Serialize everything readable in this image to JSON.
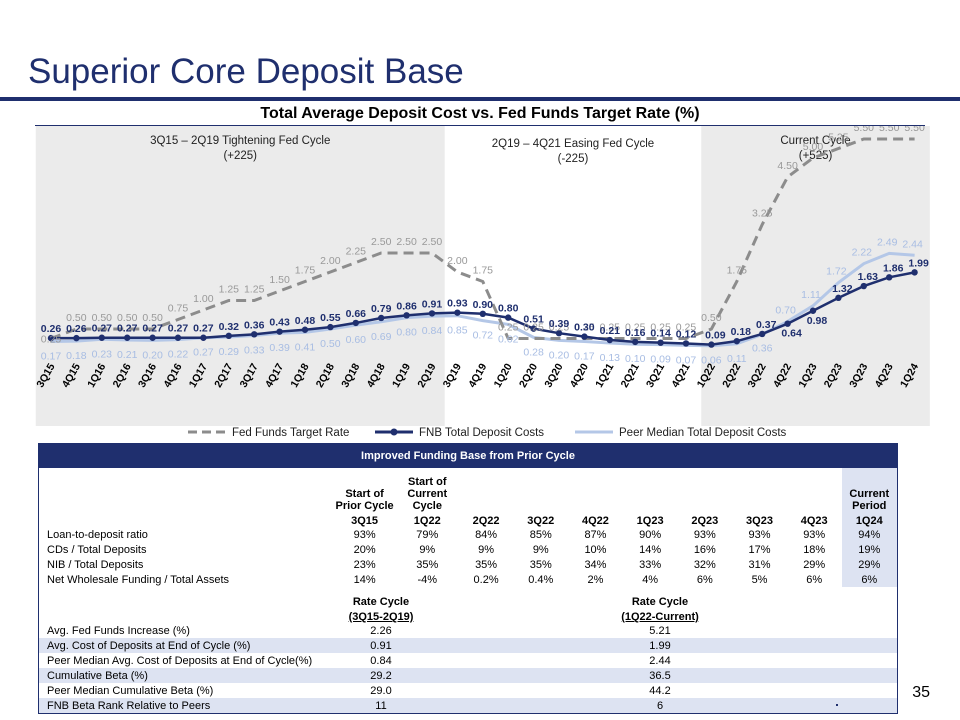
{
  "page": {
    "title": "Superior Core Deposit Base",
    "page_number": "35"
  },
  "chart_data": {
    "type": "line",
    "title": "Total Average Deposit Cost vs. Fed Funds Target Rate (%)",
    "categories": [
      "3Q15",
      "4Q15",
      "1Q16",
      "2Q16",
      "3Q16",
      "4Q16",
      "1Q17",
      "2Q17",
      "3Q17",
      "4Q17",
      "1Q18",
      "2Q18",
      "3Q18",
      "4Q18",
      "1Q19",
      "2Q19",
      "3Q19",
      "4Q19",
      "1Q20",
      "2Q20",
      "3Q20",
      "4Q20",
      "1Q21",
      "2Q21",
      "3Q21",
      "4Q21",
      "1Q22",
      "2Q22",
      "3Q22",
      "4Q22",
      "1Q23",
      "2Q23",
      "3Q23",
      "4Q23",
      "1Q24"
    ],
    "series": [
      {
        "name": "Fed Funds Target Rate",
        "style": "dashed",
        "color": "#8c8c8c",
        "values": [
          0.25,
          0.5,
          0.5,
          0.5,
          0.5,
          0.75,
          1.0,
          1.25,
          1.25,
          1.5,
          1.75,
          2.0,
          2.25,
          2.5,
          2.5,
          2.5,
          2.0,
          1.75,
          0.25,
          0.25,
          0.25,
          0.25,
          0.25,
          0.25,
          0.25,
          0.25,
          0.5,
          1.75,
          3.25,
          4.5,
          5.0,
          5.25,
          5.5,
          5.5,
          5.5
        ]
      },
      {
        "name": "FNB Total Deposit Costs",
        "style": "solid-marker",
        "color": "#1f2f6e",
        "values": [
          0.26,
          0.26,
          0.27,
          0.27,
          0.27,
          0.27,
          0.27,
          0.32,
          0.36,
          0.43,
          0.48,
          0.55,
          0.66,
          0.79,
          0.86,
          0.91,
          0.93,
          0.9,
          0.8,
          0.51,
          0.39,
          0.3,
          0.21,
          0.16,
          0.14,
          0.12,
          0.09,
          0.18,
          0.37,
          0.64,
          0.98,
          1.32,
          1.63,
          1.86,
          1.99
        ]
      },
      {
        "name": "Peer Median Total Deposit Costs",
        "style": "solid",
        "color": "#b4c7e7",
        "values": [
          0.17,
          0.18,
          0.23,
          0.21,
          0.2,
          0.22,
          0.27,
          0.29,
          0.33,
          0.39,
          0.41,
          0.5,
          0.6,
          0.69,
          0.8,
          0.84,
          0.85,
          0.72,
          0.62,
          0.28,
          0.2,
          0.17,
          0.13,
          0.1,
          0.09,
          0.07,
          0.06,
          0.11,
          0.36,
          0.7,
          1.11,
          1.72,
          2.22,
          2.49,
          2.44
        ]
      }
    ],
    "cycles": [
      {
        "label": "3Q15 – 2Q19 Tightening Fed Cycle",
        "sublabel": "(+225)",
        "shaded": true
      },
      {
        "label": "2Q19 – 4Q21 Easing Fed Cycle",
        "sublabel": "(-225)",
        "shaded": false
      },
      {
        "label": "Current Cycle",
        "sublabel": "(+525)",
        "shaded": true
      }
    ],
    "ylim": [
      0,
      6
    ],
    "legend_position": "bottom"
  },
  "table": {
    "title": "Improved Funding Base from Prior Cycle",
    "headers": [
      {
        "top": "Start of Prior Cycle",
        "period": "3Q15"
      },
      {
        "top": "Start of Current Cycle",
        "period": "1Q22"
      },
      {
        "top": "",
        "period": "2Q22"
      },
      {
        "top": "",
        "period": "3Q22"
      },
      {
        "top": "",
        "period": "4Q22"
      },
      {
        "top": "",
        "period": "1Q23"
      },
      {
        "top": "",
        "period": "2Q23"
      },
      {
        "top": "",
        "period": "3Q23"
      },
      {
        "top": "",
        "period": "4Q23"
      },
      {
        "top": "Current Period",
        "period": "1Q24"
      }
    ],
    "rows": [
      {
        "label": "Loan-to-deposit ratio",
        "values": [
          "93%",
          "79%",
          "84%",
          "85%",
          "87%",
          "90%",
          "93%",
          "93%",
          "93%",
          "94%"
        ]
      },
      {
        "label": "CDs / Total Deposits",
        "values": [
          "20%",
          "9%",
          "9%",
          "9%",
          "10%",
          "14%",
          "16%",
          "17%",
          "18%",
          "19%"
        ]
      },
      {
        "label": "NIB / Total Deposits",
        "values": [
          "23%",
          "35%",
          "35%",
          "35%",
          "34%",
          "33%",
          "32%",
          "31%",
          "29%",
          "29%"
        ]
      },
      {
        "label": "Net Wholesale Funding / Total Assets",
        "values": [
          "14%",
          "-4%",
          "0.2%",
          "0.4%",
          "2%",
          "4%",
          "6%",
          "5%",
          "6%",
          "6%"
        ]
      }
    ],
    "beta_headers": {
      "prior_top": "Rate Cycle",
      "prior_bottom": "(3Q15-2Q19)",
      "current_top": "Rate Cycle",
      "current_bottom": "(1Q22-Current)"
    },
    "beta_rows": [
      {
        "label": "Avg. Fed Funds Increase (%)",
        "prior": "2.26",
        "current": "5.21"
      },
      {
        "label": "Avg. Cost of Deposits at End of Cycle (%)",
        "prior": "0.91",
        "current": "1.99"
      },
      {
        "label": "Peer Median Avg. Cost of Deposits at End of Cycle(%)",
        "prior": "0.84",
        "current": "2.44"
      },
      {
        "label": "Cumulative Beta (%)",
        "prior": "29.2",
        "current": "36.5"
      },
      {
        "label": "Peer Median Cumulative Beta (%)",
        "prior": "29.0",
        "current": "44.2"
      },
      {
        "label": "FNB Beta Rank Relative to Peers",
        "prior": "11",
        "current": "6"
      }
    ]
  }
}
